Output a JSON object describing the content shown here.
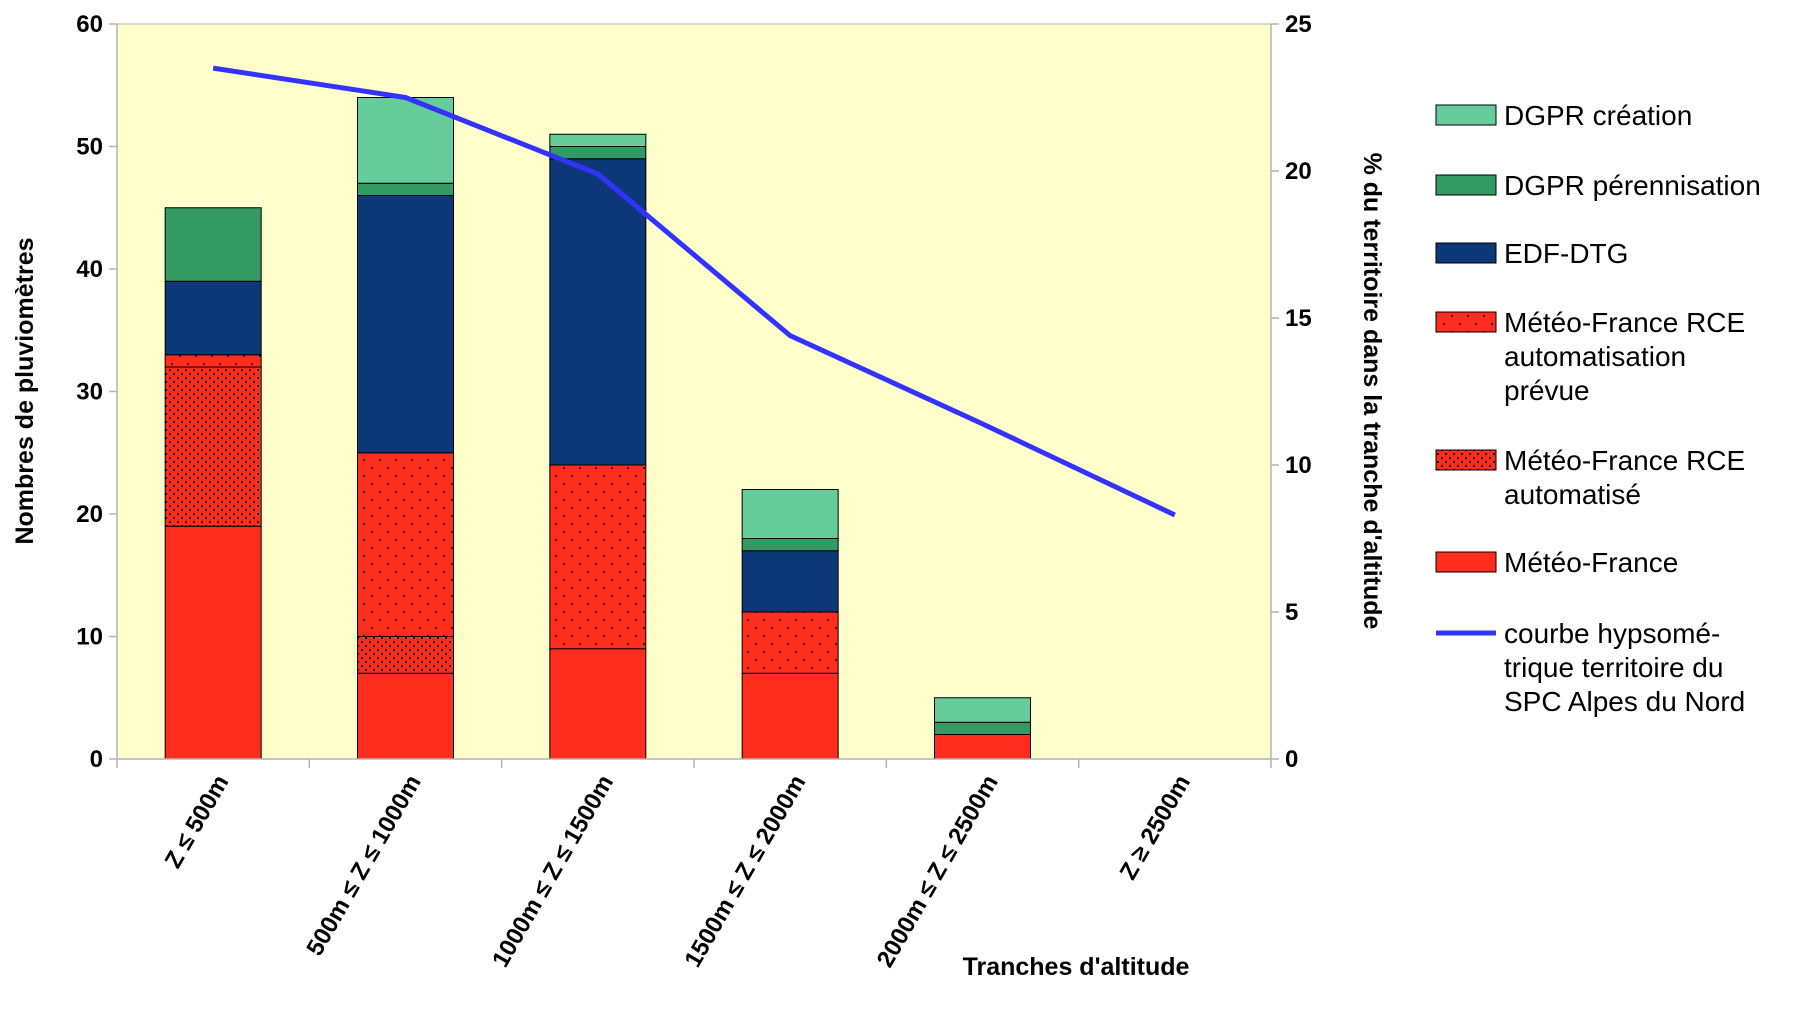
{
  "chart_data": {
    "type": "bar",
    "stacked": true,
    "title": "",
    "xlabel": "Tranches d'altitude",
    "ylabel": "Nombres de pluviomètres",
    "y2label": "% du territoire dans la tranche d'altitude",
    "ylim": [
      0,
      60
    ],
    "y2lim": [
      0,
      25
    ],
    "yticks": [
      0,
      10,
      20,
      30,
      40,
      50,
      60
    ],
    "y2ticks": [
      0,
      5,
      10,
      15,
      20,
      25
    ],
    "grid": false,
    "legend_position": "right",
    "categories": [
      "Z ≤ 500m",
      "500m ≤ Z ≤ 1000m",
      "1000m ≤ Z ≤ 1500m",
      "1500m ≤ Z ≤ 2000m",
      "2000m ≤ Z ≤ 2500m",
      "Z ≥ 2500m"
    ],
    "series": [
      {
        "name": "Météo-France",
        "values": [
          19,
          7,
          9,
          7,
          2,
          0
        ],
        "color": "#ff2d1e",
        "pattern": "solid"
      },
      {
        "name": "Météo-France RCE automatisé",
        "values": [
          13,
          3,
          0,
          0,
          0,
          0
        ],
        "color": "#ff2d1e",
        "pattern": "dense-dots"
      },
      {
        "name": "Météo-France RCE automatisation prévue",
        "values": [
          1,
          15,
          15,
          5,
          0,
          0
        ],
        "color": "#ff2d1e",
        "pattern": "sparse-dots"
      },
      {
        "name": "EDF-DTG",
        "values": [
          6,
          21,
          25,
          5,
          0,
          0
        ],
        "color": "#0c3879",
        "pattern": "solid"
      },
      {
        "name": "DGPR pérennisation",
        "values": [
          6,
          1,
          1,
          1,
          1,
          0
        ],
        "color": "#339a65",
        "pattern": "solid"
      },
      {
        "name": "DGPR création",
        "values": [
          0,
          7,
          1,
          4,
          2,
          0
        ],
        "color": "#66cc99",
        "pattern": "solid"
      }
    ],
    "line_series": {
      "name": "courbe hypsométrique territoire du SPC Alpes du Nord",
      "axis": "right",
      "values": [
        23.5,
        22.5,
        19.9,
        14.4,
        11.4,
        8.3
      ],
      "color": "#3333ff"
    },
    "legend": [
      {
        "series": "DGPR création",
        "lines": [
          "DGPR création"
        ]
      },
      {
        "series": "DGPR pérennisation",
        "lines": [
          "DGPR pérennisation"
        ]
      },
      {
        "series": "EDF-DTG",
        "lines": [
          "EDF-DTG"
        ]
      },
      {
        "series": "Météo-France RCE automatisation prévue",
        "lines": [
          "Météo-France RCE",
          "automatisation",
          "prévue"
        ]
      },
      {
        "series": "Météo-France RCE automatisé",
        "lines": [
          "Météo-France RCE",
          "automatisé"
        ]
      },
      {
        "series": "Météo-France",
        "lines": [
          "Météo-France"
        ]
      },
      {
        "series": "courbe hypsométrique territoire du SPC Alpes du Nord",
        "lines": [
          "courbe hypsomé-",
          "trique territoire du",
          "SPC Alpes du Nord"
        ]
      }
    ],
    "plot_background": "#ffffcc"
  }
}
